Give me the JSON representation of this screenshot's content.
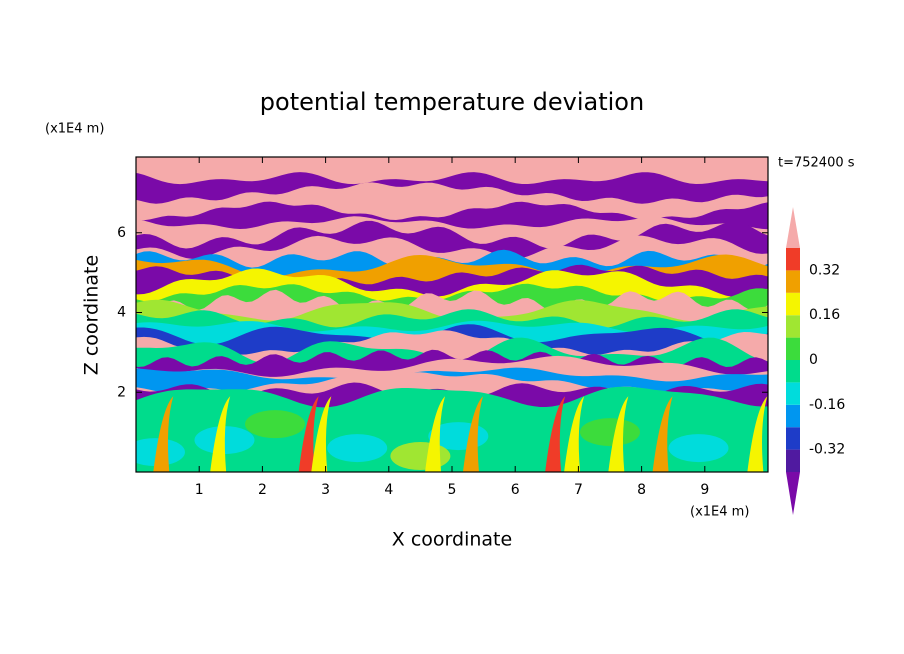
{
  "chart_data": {
    "type": "contour",
    "title": "potential temperature deviation",
    "xlabel": "X coordinate",
    "ylabel": "Z coordinate",
    "x_unit": "(x1E4 m)",
    "y_unit": "(x1E4 m)",
    "time_label": "t=752400 s",
    "xlim": [
      0,
      10
    ],
    "ylim": [
      0,
      7.9
    ],
    "xticks": [
      1,
      2,
      3,
      4,
      5,
      6,
      7,
      8,
      9
    ],
    "yticks": [
      2,
      4,
      6
    ],
    "levels": [
      -0.4,
      -0.32,
      -0.24,
      -0.16,
      -0.08,
      0,
      0.08,
      0.16,
      0.24,
      0.32,
      0.4
    ],
    "colors": [
      "#7a0aa8",
      "#501aa0",
      "#1e3cc8",
      "#0096f0",
      "#00dcdc",
      "#00dc8c",
      "#3cdc3c",
      "#a0e632",
      "#f5f500",
      "#f0a000",
      "#f03c28",
      "#f5aaaa"
    ],
    "colorbar_ticks": [
      -0.32,
      -0.16,
      0,
      0.16,
      0.32
    ]
  }
}
